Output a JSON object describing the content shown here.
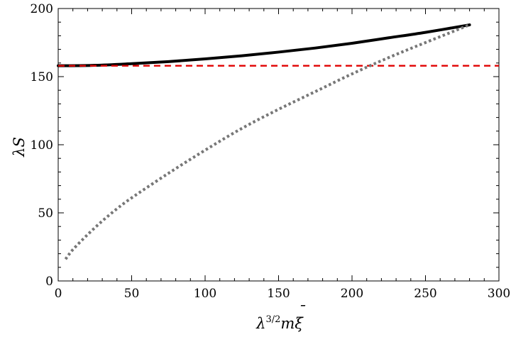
{
  "chart_data": {
    "type": "line",
    "xlabel": {
      "lambda": "λ",
      "exponent": "3/2",
      "m": "m",
      "xi": "ξ",
      "bar": "¯"
    },
    "ylabel": {
      "lambda": "λ",
      "s": "S"
    },
    "xlim": [
      0,
      300
    ],
    "ylim": [
      0,
      200
    ],
    "xticks": [
      0,
      50,
      100,
      150,
      200,
      250,
      300
    ],
    "yticks": [
      0,
      50,
      100,
      150,
      200
    ],
    "xminor_step": 10,
    "yminor_step": 10,
    "grid": false,
    "series": [
      {
        "style": "solid",
        "color": "#000000",
        "x": [
          0,
          25,
          50,
          75,
          100,
          125,
          150,
          175,
          200,
          225,
          250,
          280
        ],
        "y": [
          158,
          158.3,
          159.5,
          161,
          163,
          165.3,
          168,
          171,
          174.5,
          178.5,
          182.5,
          188
        ]
      },
      {
        "style": "dashed",
        "color": "#e00000",
        "x": [
          0,
          300
        ],
        "y": [
          158,
          158
        ]
      },
      {
        "style": "dotted",
        "color": "#777777",
        "x": [
          5,
          10,
          20,
          30,
          40,
          50,
          75,
          100,
          125,
          150,
          175,
          200,
          225,
          250,
          280
        ],
        "y": [
          16,
          23,
          34,
          44,
          53,
          61,
          79,
          96,
          112,
          126,
          139,
          152,
          164,
          175,
          188
        ]
      }
    ]
  }
}
